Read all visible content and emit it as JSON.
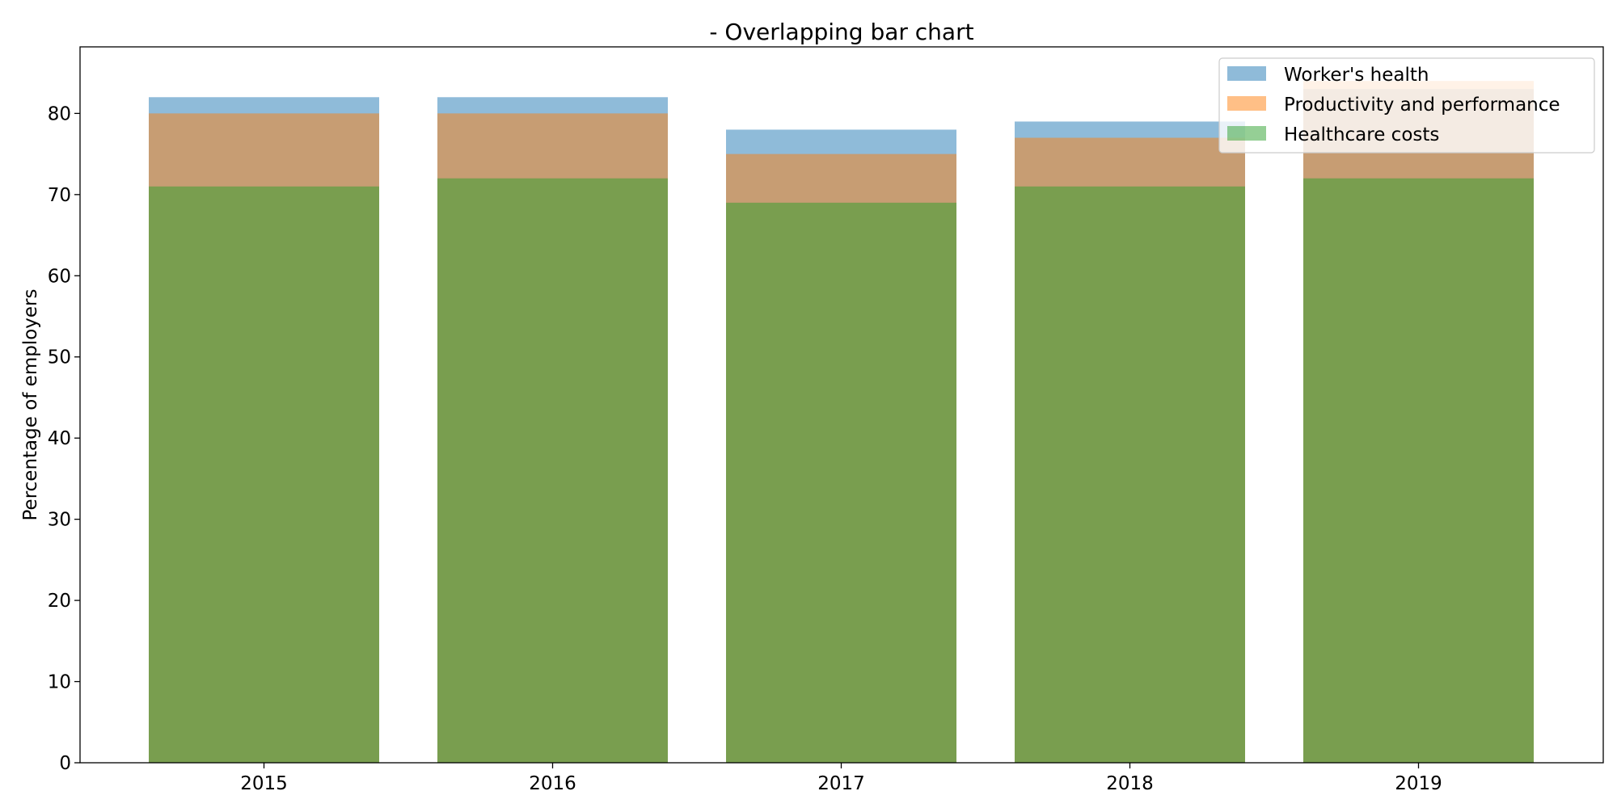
{
  "chart_data": {
    "type": "bar",
    "title": "- Overlapping bar chart",
    "xlabel": "",
    "ylabel": "Percentage of employers",
    "categories": [
      "2015",
      "2016",
      "2017",
      "2018",
      "2019"
    ],
    "series": [
      {
        "name": "Worker's health",
        "values": [
          82,
          82,
          78,
          79,
          83
        ],
        "color": "#1f77b4",
        "opacity": 0.5
      },
      {
        "name": "Productivity and performance",
        "values": [
          80,
          80,
          75,
          77,
          84
        ],
        "color": "#ff7f0e",
        "opacity": 0.5
      },
      {
        "name": "Healthcare costs",
        "values": [
          71,
          72,
          69,
          71,
          72
        ],
        "color": "#2ca02c",
        "opacity": 0.5
      }
    ],
    "ylim": [
      0,
      88.2
    ],
    "yticks": [
      0,
      10,
      20,
      30,
      40,
      50,
      60,
      70,
      80
    ],
    "grid": false,
    "legend_position": "top-right",
    "overlap": true
  }
}
